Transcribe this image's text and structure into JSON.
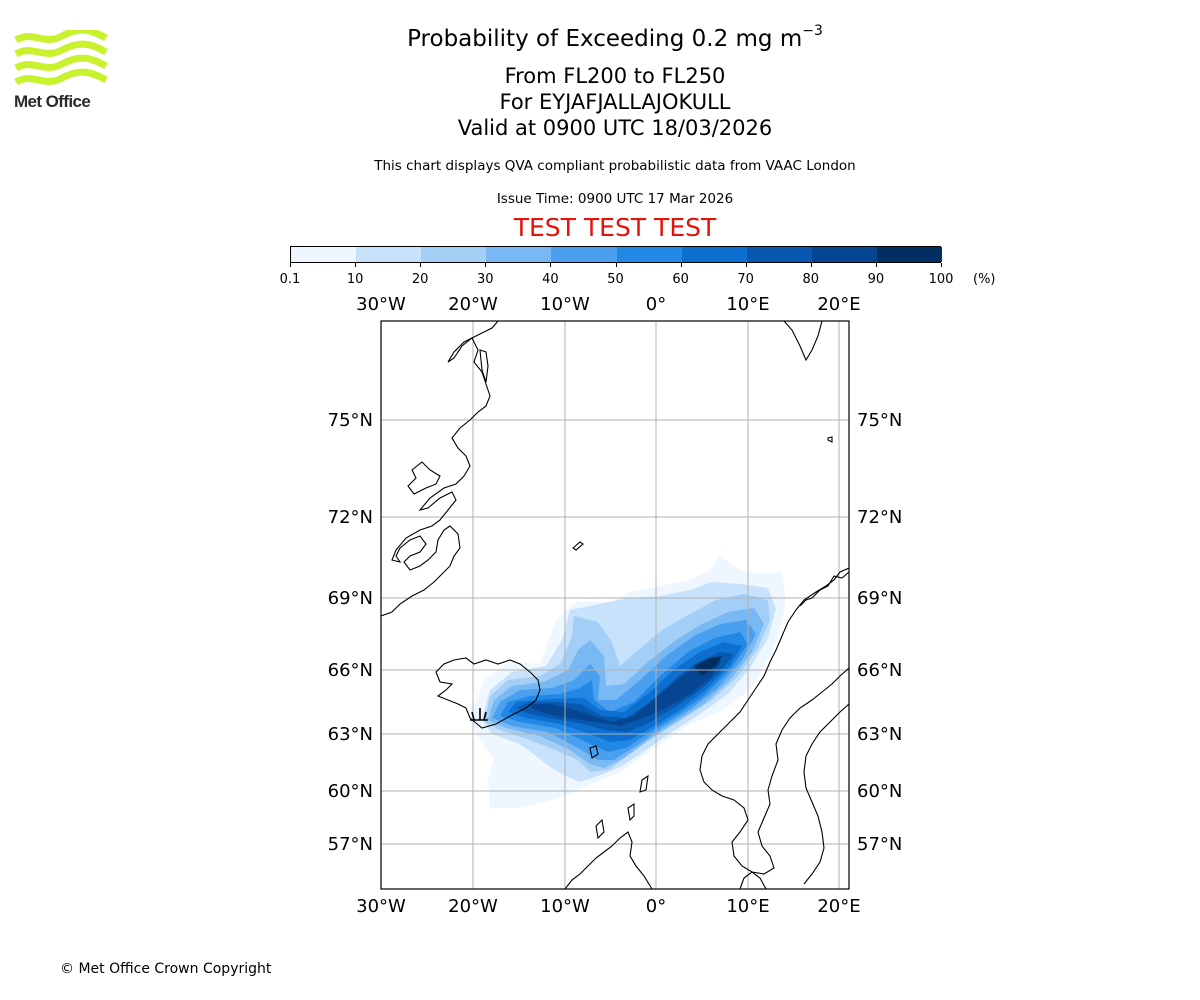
{
  "header": {
    "title_main": "Probability of Exceeding 0.2 mg m",
    "title_exponent": "−3",
    "level_range": "From FL200 to FL250",
    "volcano_line": "For EYJAFJALLAJOKULL",
    "valid_line": "Valid at 0900 UTC 18/03/2026",
    "data_note": "This chart displays QVA compliant probabilistic data from VAAC London",
    "issue_time": "Issue Time: 0900 UTC 17 Mar 2026",
    "test_banner": "TEST TEST TEST"
  },
  "logo": {
    "text": "Met Office",
    "color": "#c7f22d"
  },
  "footer": {
    "copyright": "© Met Office Crown Copyright"
  },
  "colorbar": {
    "unit": "(%)",
    "tick_labels": [
      "0.1",
      "10",
      "20",
      "30",
      "40",
      "50",
      "60",
      "70",
      "80",
      "90",
      "100"
    ],
    "colors": [
      "#eef6ff",
      "#c8e2fb",
      "#a3cff7",
      "#78b9f3",
      "#4aa0ee",
      "#2288e6",
      "#0d6fd0",
      "#0858b0",
      "#054592",
      "#022f62"
    ]
  },
  "map_axes": {
    "lon_labels": [
      "30°W",
      "20°W",
      "10°W",
      "0°",
      "10°E",
      "20°E"
    ],
    "lat_labels": [
      "75°N",
      "72°N",
      "69°N",
      "66°N",
      "63°N",
      "60°N",
      "57°N"
    ]
  },
  "chart_data": {
    "type": "heatmap",
    "title": "Probability of Exceeding 0.2 mg m−3",
    "variable": "probability of ash concentration exceedance",
    "units": "%",
    "levels": [
      0.1,
      10,
      20,
      30,
      40,
      50,
      60,
      70,
      80,
      90,
      100
    ],
    "lon_range": [
      -30,
      21
    ],
    "lat_range": [
      54,
      79
    ],
    "source_location": "EYJAFJALLAJOKULL"
  }
}
